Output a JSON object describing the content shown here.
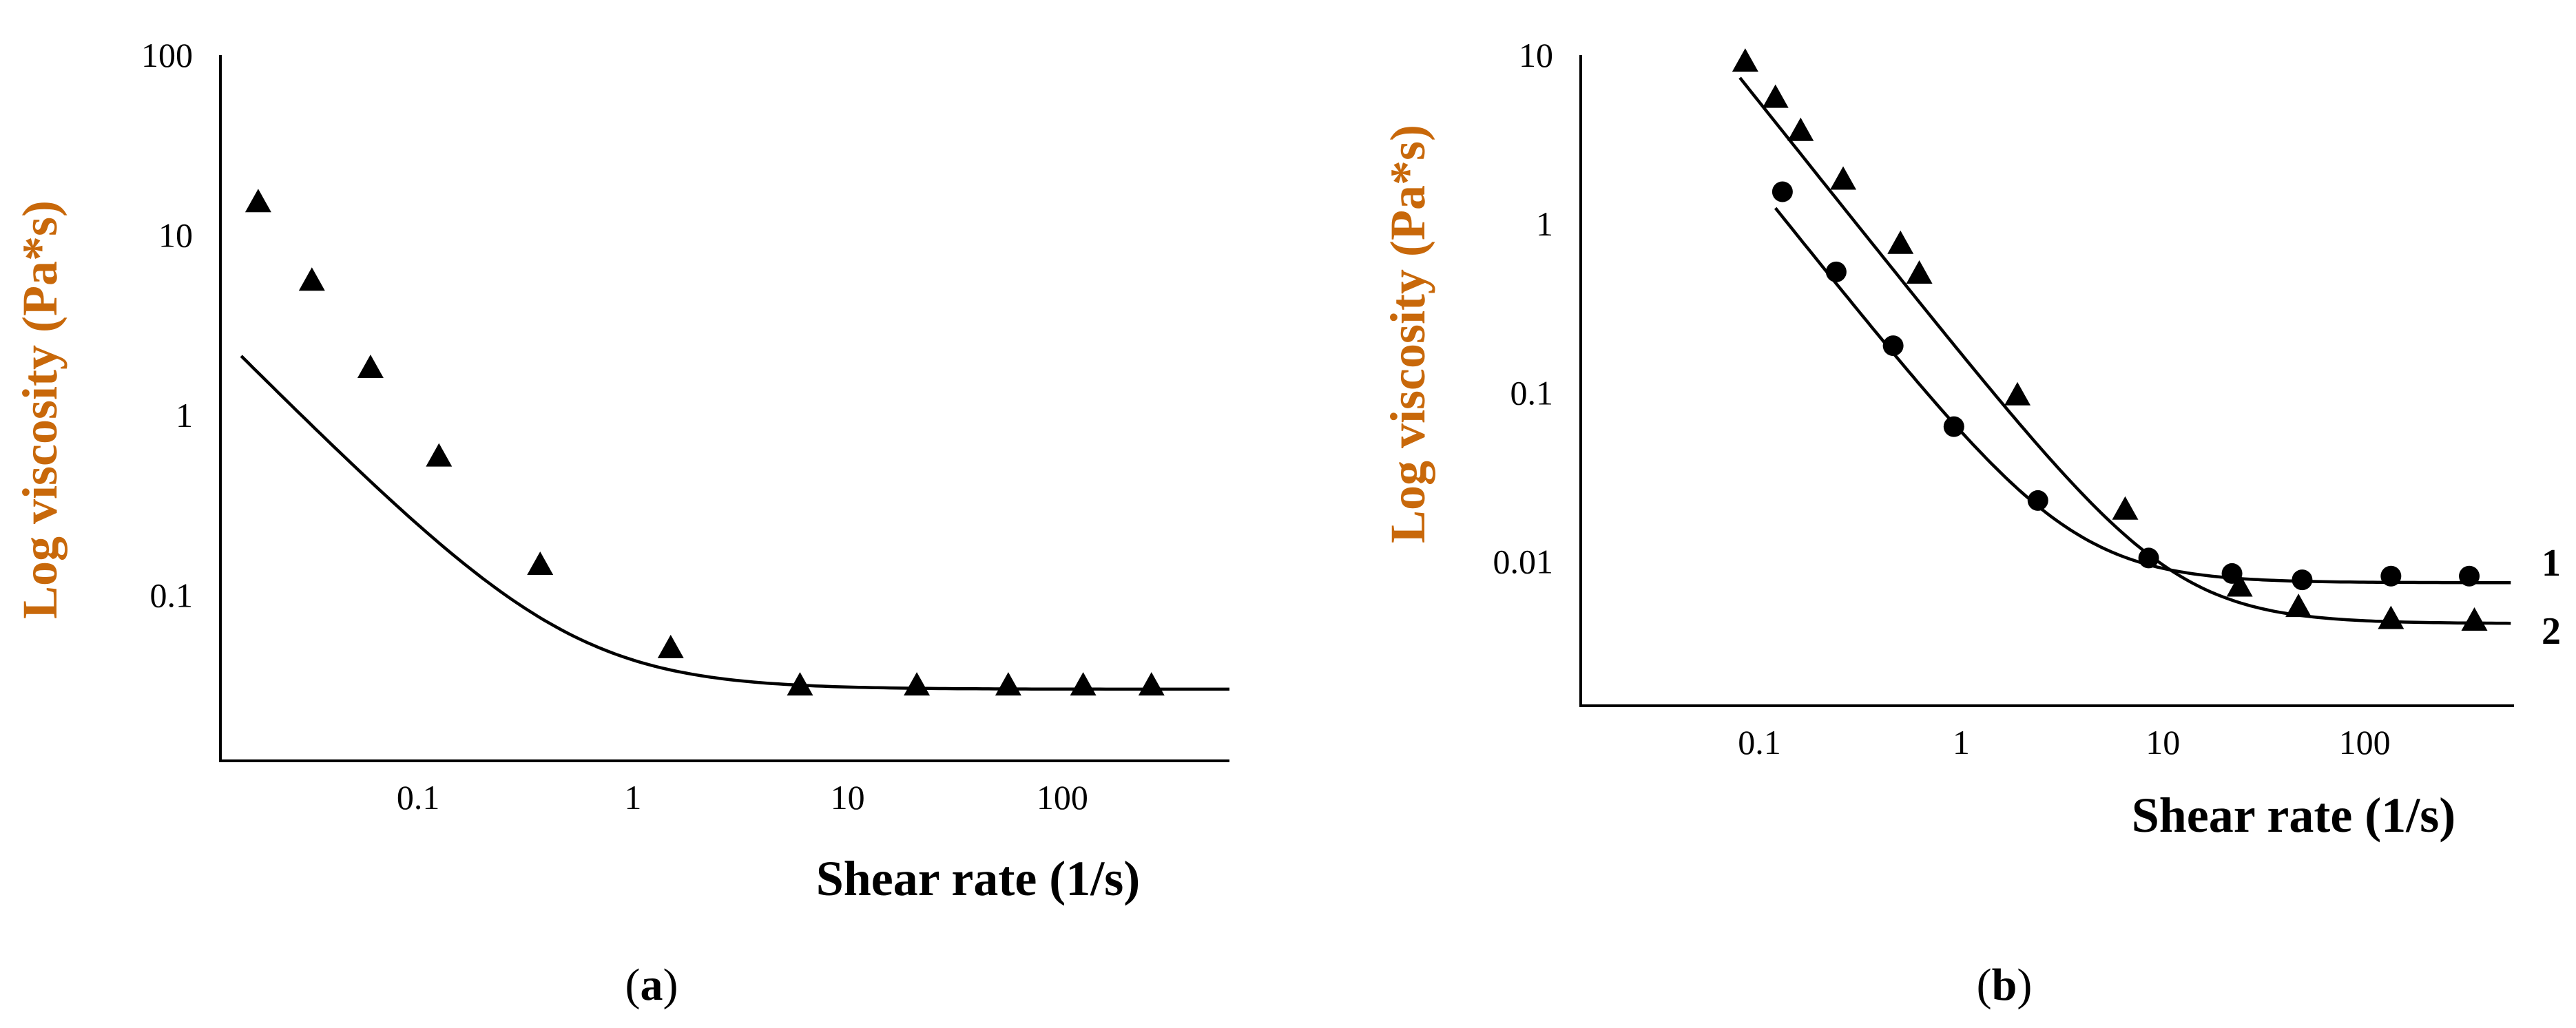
{
  "chart_data": [
    {
      "type": "scatter",
      "subfigure": "a",
      "xlabel": "Shear rate (1/s)",
      "ylabel": "Log viscosity (Pa*s)",
      "xscale": "log",
      "yscale": "log",
      "xlim": [
        0.012,
        600
      ],
      "ylim": [
        0.012,
        100
      ],
      "xticks": [
        {
          "value": 0.1,
          "label": "0.1"
        },
        {
          "value": 1,
          "label": "1"
        },
        {
          "value": 10,
          "label": "10"
        },
        {
          "value": 100,
          "label": "100"
        }
      ],
      "yticks": [
        {
          "value": 0.1,
          "label": "0.1"
        },
        {
          "value": 1,
          "label": "1"
        },
        {
          "value": 10,
          "label": "10"
        },
        {
          "value": 100,
          "label": "100"
        }
      ],
      "series": [
        {
          "name": "",
          "marker": "triangle",
          "x": [
            0.018,
            0.032,
            0.06,
            0.125,
            0.37,
            1.5,
            6,
            21,
            56,
            125,
            260
          ],
          "y": [
            15,
            5.5,
            1.8,
            0.58,
            0.145,
            0.05,
            0.031,
            0.031,
            0.031,
            0.031,
            0.031
          ],
          "fit": {
            "x0": 0.015,
            "x1": 600,
            "plateau": 0.03,
            "k": 0.0136,
            "n": -1.2
          }
        }
      ]
    },
    {
      "type": "scatter",
      "subfigure": "b",
      "xlabel": "Shear rate (1/s)",
      "ylabel": "Log viscosity (Pa*s)",
      "xscale": "log",
      "yscale": "log",
      "xlim": [
        0.013,
        550
      ],
      "ylim": [
        0.0014,
        10
      ],
      "xticks": [
        {
          "value": 0.1,
          "label": "0.1"
        },
        {
          "value": 1,
          "label": "1"
        },
        {
          "value": 10,
          "label": "10"
        },
        {
          "value": 100,
          "label": "100"
        }
      ],
      "yticks": [
        {
          "value": 0.01,
          "label": "0.01"
        },
        {
          "value": 0.1,
          "label": "0.1"
        },
        {
          "value": 1,
          "label": "1"
        },
        {
          "value": 10,
          "label": "10"
        }
      ],
      "series": [
        {
          "name": "1",
          "marker": "circle",
          "x": [
            0.13,
            0.24,
            0.46,
            0.92,
            2.4,
            8.5,
            22,
            49,
            135,
            330
          ],
          "y": [
            1.55,
            0.52,
            0.19,
            0.063,
            0.023,
            0.0105,
            0.0085,
            0.0078,
            0.0082,
            0.0082
          ],
          "fit": {
            "x0": 0.12,
            "x1": 530,
            "plateau": 0.0075,
            "k": 0.0513,
            "n": -1.5
          }
        },
        {
          "name": "2",
          "marker": "triangle",
          "x": [
            0.085,
            0.12,
            0.16,
            0.26,
            0.5,
            0.62,
            1.9,
            6.5,
            24,
            47,
            135,
            350
          ],
          "y": [
            9,
            5.5,
            3.5,
            1.8,
            0.75,
            0.5,
            0.095,
            0.02,
            0.007,
            0.0053,
            0.0045,
            0.0044
          ],
          "fit": {
            "x0": 0.08,
            "x1": 530,
            "plateau": 0.0043,
            "k": 0.166,
            "n": -1.5
          }
        }
      ]
    }
  ],
  "subfigures": {
    "a": {
      "open": "(",
      "letter": "a",
      "close": ")"
    },
    "b": {
      "open": "(",
      "letter": "b",
      "close": ")"
    }
  }
}
